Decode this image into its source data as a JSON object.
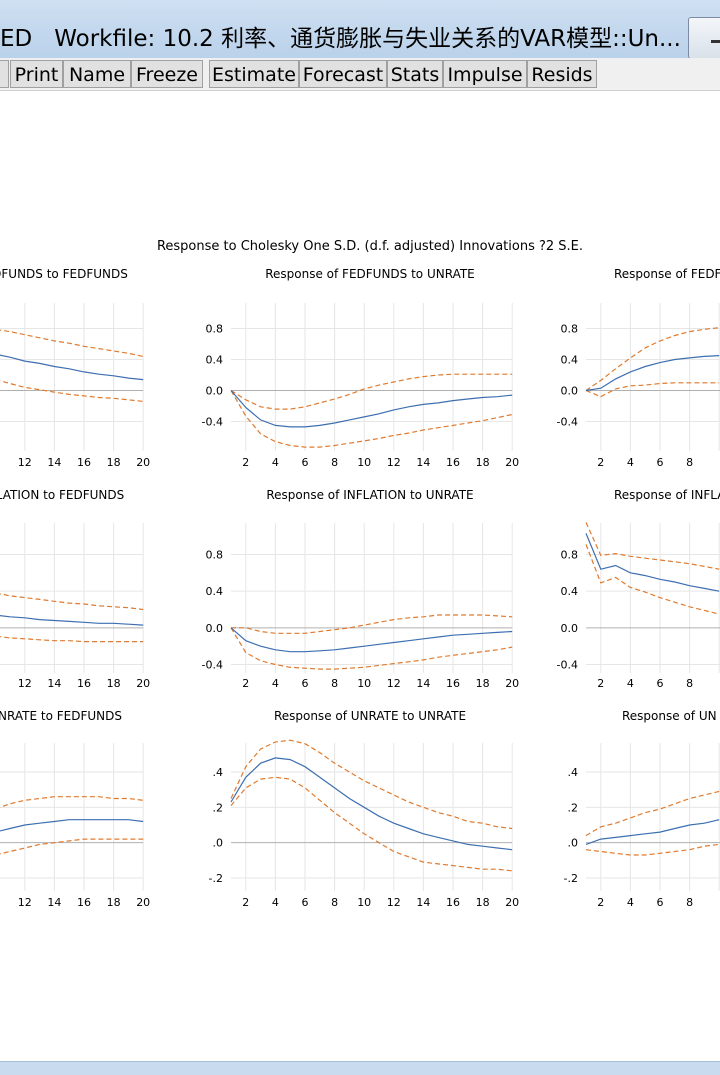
{
  "window": {
    "title_left": "ED",
    "title_main": "Workfile: 10.2 利率、通货膨胀与失业关系的VAR模型::Un..."
  },
  "toolbar": {
    "buttons": [
      "Print",
      "Name",
      "Freeze",
      "Estimate",
      "Forecast",
      "Stats",
      "Impulse",
      "Resids"
    ]
  },
  "chart_data": {
    "type": "line",
    "title": "Response to Cholesky One S.D. (d.f. adjusted) Innovations ?2 S.E.",
    "x_ticks": [
      "2",
      "4",
      "6",
      "8",
      "10",
      "12",
      "14",
      "16",
      "18",
      "20"
    ],
    "panels": [
      {
        "title": "DFUNDS to FEDFUNDS",
        "y_ticks": [],
        "ylim": [
          -0.6,
          1.0
        ],
        "x": [
          9,
          10,
          11,
          12,
          13,
          14,
          15,
          16,
          17,
          18,
          19,
          20
        ],
        "response": [
          0.52,
          0.47,
          0.43,
          0.38,
          0.35,
          0.31,
          0.28,
          0.24,
          0.21,
          0.19,
          0.16,
          0.14
        ],
        "upper": [
          0.82,
          0.79,
          0.76,
          0.72,
          0.68,
          0.64,
          0.61,
          0.57,
          0.54,
          0.51,
          0.48,
          0.44
        ],
        "lower": [
          0.21,
          0.14,
          0.09,
          0.04,
          0.01,
          -0.02,
          -0.05,
          -0.07,
          -0.09,
          -0.1,
          -0.12,
          -0.14
        ]
      },
      {
        "title": "Response of FEDFUNDS to UNRATE",
        "y_ticks": [
          "0.8",
          "0.4",
          "0.0",
          "-0.4"
        ],
        "ylim": [
          -0.6,
          1.0
        ],
        "x": [
          1,
          2,
          3,
          4,
          5,
          6,
          7,
          8,
          9,
          10,
          11,
          12,
          13,
          14,
          15,
          16,
          17,
          18,
          19,
          20
        ],
        "response": [
          0.0,
          -0.22,
          -0.38,
          -0.45,
          -0.47,
          -0.47,
          -0.45,
          -0.42,
          -0.38,
          -0.34,
          -0.3,
          -0.25,
          -0.21,
          -0.18,
          -0.16,
          -0.13,
          -0.11,
          -0.09,
          -0.08,
          -0.06
        ],
        "upper": [
          0.0,
          -0.12,
          -0.21,
          -0.24,
          -0.24,
          -0.21,
          -0.16,
          -0.11,
          -0.05,
          0.02,
          0.07,
          0.11,
          0.15,
          0.18,
          0.2,
          0.21,
          0.21,
          0.21,
          0.21,
          0.21
        ],
        "lower": [
          0.0,
          -0.33,
          -0.56,
          -0.66,
          -0.71,
          -0.73,
          -0.73,
          -0.71,
          -0.68,
          -0.65,
          -0.62,
          -0.58,
          -0.55,
          -0.51,
          -0.48,
          -0.45,
          -0.42,
          -0.39,
          -0.35,
          -0.31
        ]
      },
      {
        "title": "Response of FEDF",
        "y_ticks": [
          "0.8",
          "0.4",
          "0.0",
          "-0.4"
        ],
        "ylim": [
          -0.6,
          1.0
        ],
        "x": [
          1,
          2,
          3,
          4,
          5,
          6,
          7,
          8,
          9,
          10
        ],
        "response": [
          0.0,
          0.03,
          0.15,
          0.24,
          0.31,
          0.36,
          0.4,
          0.42,
          0.44,
          0.45
        ],
        "upper": [
          0.0,
          0.13,
          0.28,
          0.42,
          0.55,
          0.64,
          0.71,
          0.76,
          0.79,
          0.81
        ],
        "lower": [
          0.0,
          -0.08,
          0.02,
          0.06,
          0.07,
          0.09,
          0.1,
          0.1,
          0.1,
          0.1
        ]
      },
      {
        "title": "LATION to FEDFUNDS",
        "y_ticks": [],
        "ylim": [
          -0.5,
          1.0
        ],
        "x": [
          9,
          10,
          11,
          12,
          13,
          14,
          15,
          16,
          17,
          18,
          19,
          20
        ],
        "response": [
          0.16,
          0.14,
          0.12,
          0.11,
          0.09,
          0.08,
          0.07,
          0.06,
          0.05,
          0.05,
          0.04,
          0.03
        ],
        "upper": [
          0.42,
          0.38,
          0.35,
          0.33,
          0.31,
          0.29,
          0.27,
          0.26,
          0.24,
          0.23,
          0.22,
          0.2
        ],
        "lower": [
          -0.07,
          -0.09,
          -0.11,
          -0.12,
          -0.13,
          -0.14,
          -0.14,
          -0.15,
          -0.15,
          -0.15,
          -0.15,
          -0.15
        ]
      },
      {
        "title": "Response of INFLATION to UNRATE",
        "y_ticks": [
          "0.8",
          "0.4",
          "0.0",
          "-0.4"
        ],
        "ylim": [
          -0.5,
          1.0
        ],
        "x": [
          1,
          2,
          3,
          4,
          5,
          6,
          7,
          8,
          9,
          10,
          11,
          12,
          13,
          14,
          15,
          16,
          17,
          18,
          19,
          20
        ],
        "response": [
          0.0,
          -0.14,
          -0.2,
          -0.24,
          -0.26,
          -0.26,
          -0.25,
          -0.24,
          -0.22,
          -0.2,
          -0.18,
          -0.16,
          -0.14,
          -0.12,
          -0.1,
          -0.08,
          -0.07,
          -0.06,
          -0.05,
          -0.04
        ],
        "upper": [
          0.0,
          0.0,
          -0.04,
          -0.06,
          -0.06,
          -0.06,
          -0.04,
          -0.02,
          0.0,
          0.03,
          0.06,
          0.09,
          0.11,
          0.12,
          0.14,
          0.14,
          0.14,
          0.14,
          0.13,
          0.12
        ],
        "lower": [
          0.0,
          -0.27,
          -0.36,
          -0.4,
          -0.43,
          -0.44,
          -0.45,
          -0.45,
          -0.44,
          -0.43,
          -0.41,
          -0.39,
          -0.37,
          -0.35,
          -0.32,
          -0.3,
          -0.28,
          -0.26,
          -0.24,
          -0.21
        ]
      },
      {
        "title": "Response of INFLA",
        "y_ticks": [
          "0.8",
          "0.4",
          "0.0",
          "-0.4"
        ],
        "ylim": [
          -0.5,
          1.0
        ],
        "x": [
          1,
          2,
          3,
          4,
          5,
          6,
          7,
          8,
          9,
          10
        ],
        "response": [
          1.03,
          0.64,
          0.68,
          0.6,
          0.57,
          0.53,
          0.5,
          0.46,
          0.43,
          0.4
        ],
        "upper": [
          1.15,
          0.79,
          0.81,
          0.78,
          0.76,
          0.74,
          0.72,
          0.7,
          0.67,
          0.64
        ],
        "lower": [
          0.91,
          0.49,
          0.55,
          0.44,
          0.39,
          0.33,
          0.28,
          0.23,
          0.19,
          0.15
        ]
      },
      {
        "title": "NRATE to FEDFUNDS",
        "y_ticks": [],
        "ylim": [
          -0.24,
          0.56
        ],
        "x": [
          9,
          10,
          11,
          12,
          13,
          14,
          15,
          16,
          17,
          18,
          19,
          20
        ],
        "response": [
          0.03,
          0.06,
          0.08,
          0.1,
          0.11,
          0.12,
          0.13,
          0.13,
          0.13,
          0.13,
          0.13,
          0.12
        ],
        "upper": [
          0.16,
          0.19,
          0.22,
          0.24,
          0.25,
          0.26,
          0.26,
          0.26,
          0.26,
          0.25,
          0.25,
          0.24
        ],
        "lower": [
          -0.09,
          -0.07,
          -0.05,
          -0.03,
          -0.01,
          0.0,
          0.01,
          0.02,
          0.02,
          0.02,
          0.02,
          0.02
        ]
      },
      {
        "title": "Response of UNRATE to UNRATE",
        "y_ticks": [
          ".4",
          ".2",
          ".0",
          "-.2"
        ],
        "ylim": [
          -0.24,
          0.56
        ],
        "x": [
          1,
          2,
          3,
          4,
          5,
          6,
          7,
          8,
          9,
          10,
          11,
          12,
          13,
          14,
          15,
          16,
          17,
          18,
          19,
          20
        ],
        "response": [
          0.23,
          0.37,
          0.45,
          0.48,
          0.47,
          0.43,
          0.37,
          0.31,
          0.25,
          0.2,
          0.15,
          0.11,
          0.08,
          0.05,
          0.03,
          0.01,
          -0.01,
          -0.02,
          -0.03,
          -0.04
        ],
        "upper": [
          0.25,
          0.43,
          0.53,
          0.57,
          0.58,
          0.56,
          0.51,
          0.45,
          0.4,
          0.35,
          0.31,
          0.27,
          0.23,
          0.2,
          0.17,
          0.15,
          0.12,
          0.11,
          0.09,
          0.08
        ],
        "lower": [
          0.21,
          0.31,
          0.36,
          0.37,
          0.36,
          0.31,
          0.24,
          0.17,
          0.11,
          0.05,
          0.0,
          -0.05,
          -0.08,
          -0.11,
          -0.12,
          -0.13,
          -0.14,
          -0.15,
          -0.15,
          -0.16
        ]
      },
      {
        "title": "Response of UN",
        "y_ticks": [
          ".4",
          ".2",
          ".0",
          "-.2"
        ],
        "ylim": [
          -0.24,
          0.56
        ],
        "x": [
          1,
          2,
          3,
          4,
          5,
          6,
          7,
          8,
          9,
          10
        ],
        "response": [
          -0.01,
          0.02,
          0.03,
          0.04,
          0.05,
          0.06,
          0.08,
          0.1,
          0.11,
          0.13
        ],
        "upper": [
          0.04,
          0.09,
          0.11,
          0.14,
          0.17,
          0.19,
          0.22,
          0.25,
          0.27,
          0.29
        ],
        "lower": [
          -0.04,
          -0.05,
          -0.06,
          -0.07,
          -0.07,
          -0.06,
          -0.05,
          -0.04,
          -0.02,
          -0.01
        ]
      }
    ]
  }
}
